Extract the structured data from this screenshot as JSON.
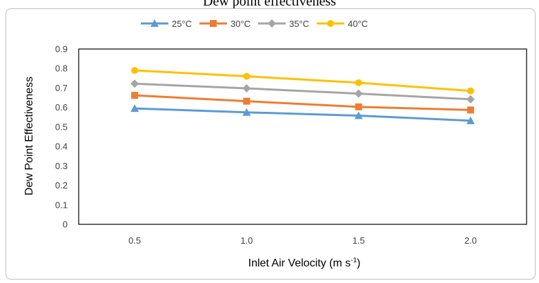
{
  "page": {
    "top_text": "Dew point effectiveness"
  },
  "chart_data": {
    "type": "line",
    "title": "",
    "xlabel": "Inlet Air Velocity (m s",
    "xlabel_sup": "-1",
    "xlabel_suffix": ")",
    "ylabel": "Dew Point Effectiveness",
    "categories": [
      "0.5",
      "1.0",
      "1.5",
      "2.0"
    ],
    "ylim": [
      0,
      0.9
    ],
    "yticks": [
      "0",
      "0.1",
      "0.2",
      "0.3",
      "0.4",
      "0.5",
      "0.6",
      "0.7",
      "0.8",
      "0.9"
    ],
    "grid": false,
    "legend_position": "top",
    "series": [
      {
        "name": "25°C",
        "values": [
          0.595,
          0.575,
          0.558,
          0.532
        ],
        "color": "#5B9BD5",
        "marker": "triangle"
      },
      {
        "name": "30°C",
        "values": [
          0.662,
          0.632,
          0.603,
          0.587
        ],
        "color": "#ED7D31",
        "marker": "square"
      },
      {
        "name": "35°C",
        "values": [
          0.722,
          0.698,
          0.671,
          0.642
        ],
        "color": "#A5A5A5",
        "marker": "diamond"
      },
      {
        "name": "40°C",
        "values": [
          0.79,
          0.76,
          0.727,
          0.685
        ],
        "color": "#FFC000",
        "marker": "circle"
      }
    ]
  }
}
